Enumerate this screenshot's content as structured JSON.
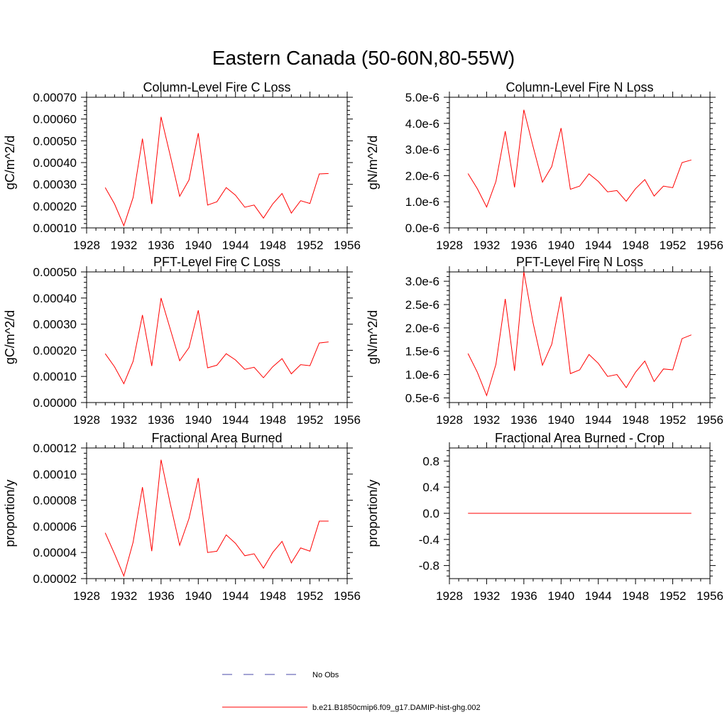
{
  "title": "Eastern Canada (50-60N,80-55W)",
  "colors": {
    "model": "#ff0000",
    "obs": "#4a4aaa",
    "axis": "#000000"
  },
  "legend": {
    "entries": [
      {
        "label": "No Obs",
        "style": "dashed",
        "color": "#4a4aaa"
      },
      {
        "label": "b.e21.B1850cmip6.f09_g17.DAMIP-hist-ghg.002",
        "style": "solid",
        "color": "#ff0000"
      }
    ]
  },
  "chart_data": [
    {
      "type": "line",
      "title": "Column-Level Fire C Loss",
      "ylabel": "gC/m^2/d",
      "xlim": [
        1928,
        1956
      ],
      "ylim": [
        0.0001,
        0.0007
      ],
      "xticks": [
        "1928",
        "1932",
        "1936",
        "1940",
        "1944",
        "1948",
        "1952",
        "1956"
      ],
      "yticks": [
        "0.00010",
        "0.00020",
        "0.00030",
        "0.00040",
        "0.00050",
        "0.00060",
        "0.00070"
      ],
      "x": [
        1930,
        1931,
        1932,
        1933,
        1934,
        1935,
        1936,
        1937,
        1938,
        1939,
        1940,
        1941,
        1942,
        1943,
        1944,
        1945,
        1946,
        1947,
        1948,
        1949,
        1950,
        1951,
        1952,
        1953,
        1954
      ],
      "series": [
        {
          "values": [
            0.000285,
            0.00021,
            0.00011,
            0.00024,
            0.00051,
            0.00021,
            0.00061,
            0.00043,
            0.000245,
            0.00032,
            0.000535,
            0.000205,
            0.00022,
            0.000285,
            0.00025,
            0.000195,
            0.000205,
            0.000145,
            0.00021,
            0.000258,
            0.000168,
            0.000225,
            0.000212,
            0.000348,
            0.00035
          ]
        }
      ]
    },
    {
      "type": "line",
      "title": "Column-Level Fire N Loss",
      "ylabel": "gN/m^2/d",
      "xlim": [
        1928,
        1956
      ],
      "ylim": [
        0.0,
        5e-06
      ],
      "xticks": [
        "1928",
        "1932",
        "1936",
        "1940",
        "1944",
        "1948",
        "1952",
        "1956"
      ],
      "yticks": [
        "0.0e-6",
        "1.0e-6",
        "2.0e-6",
        "3.0e-6",
        "4.0e-6",
        "5.0e-6"
      ],
      "x": [
        1930,
        1931,
        1932,
        1933,
        1934,
        1935,
        1936,
        1937,
        1938,
        1939,
        1940,
        1941,
        1942,
        1943,
        1944,
        1945,
        1946,
        1947,
        1948,
        1949,
        1950,
        1951,
        1952,
        1953,
        1954
      ],
      "series": [
        {
          "values": [
            2.08e-06,
            1.5e-06,
            8e-07,
            1.78e-06,
            3.7e-06,
            1.55e-06,
            4.52e-06,
            3.1e-06,
            1.75e-06,
            2.35e-06,
            3.82e-06,
            1.48e-06,
            1.6e-06,
            2.07e-06,
            1.78e-06,
            1.38e-06,
            1.43e-06,
            1.02e-06,
            1.5e-06,
            1.85e-06,
            1.22e-06,
            1.6e-06,
            1.54e-06,
            2.5e-06,
            2.6e-06
          ]
        }
      ]
    },
    {
      "type": "line",
      "title": "PFT-Level Fire C Loss",
      "ylabel": "gC/m^2/d",
      "xlim": [
        1928,
        1956
      ],
      "ylim": [
        0.0,
        0.0005
      ],
      "xticks": [
        "1928",
        "1932",
        "1936",
        "1940",
        "1944",
        "1948",
        "1952",
        "1956"
      ],
      "yticks": [
        "0.00000",
        "0.00010",
        "0.00020",
        "0.00030",
        "0.00040",
        "0.00050"
      ],
      "x": [
        1930,
        1931,
        1932,
        1933,
        1934,
        1935,
        1936,
        1937,
        1938,
        1939,
        1940,
        1941,
        1942,
        1943,
        1944,
        1945,
        1946,
        1947,
        1948,
        1949,
        1950,
        1951,
        1952,
        1953,
        1954
      ],
      "series": [
        {
          "values": [
            0.000187,
            0.000137,
            7.2e-05,
            0.000158,
            0.000335,
            0.00014,
            0.0004,
            0.00028,
            0.00016,
            0.00021,
            0.000353,
            0.000133,
            0.000143,
            0.000187,
            0.000163,
            0.000127,
            0.000135,
            9.5e-05,
            0.000137,
            0.000168,
            0.00011,
            0.000145,
            0.000141,
            0.000228,
            0.000232
          ]
        }
      ]
    },
    {
      "type": "line",
      "title": "PFT-Level Fire N Loss",
      "ylabel": "gN/m^2/d",
      "xlim": [
        1928,
        1956
      ],
      "ylim": [
        4e-07,
        3.2e-06
      ],
      "xticks": [
        "1928",
        "1932",
        "1936",
        "1940",
        "1944",
        "1948",
        "1952",
        "1956"
      ],
      "yticks": [
        "0.5e-6",
        "1.0e-6",
        "1.5e-6",
        "2.0e-6",
        "2.5e-6",
        "3.0e-6"
      ],
      "x": [
        1930,
        1931,
        1932,
        1933,
        1934,
        1935,
        1936,
        1937,
        1938,
        1939,
        1940,
        1941,
        1942,
        1943,
        1944,
        1945,
        1946,
        1947,
        1948,
        1949,
        1950,
        1951,
        1952,
        1953,
        1954
      ],
      "series": [
        {
          "values": [
            1.45e-06,
            1.05e-06,
            5.5e-07,
            1.22e-06,
            2.62e-06,
            1.08e-06,
            3.2e-06,
            2.1e-06,
            1.2e-06,
            1.65e-06,
            2.67e-06,
            1.02e-06,
            1.1e-06,
            1.43e-06,
            1.24e-06,
            9.6e-07,
            1e-06,
            7.2e-07,
            1.05e-06,
            1.29e-06,
            8.5e-07,
            1.12e-06,
            1.1e-06,
            1.77e-06,
            1.85e-06
          ]
        }
      ]
    },
    {
      "type": "line",
      "title": "Fractional Area Burned",
      "ylabel": "proportion/y",
      "xlim": [
        1928,
        1956
      ],
      "ylim": [
        2e-05,
        0.00012
      ],
      "xticks": [
        "1928",
        "1932",
        "1936",
        "1940",
        "1944",
        "1948",
        "1952",
        "1956"
      ],
      "yticks": [
        "0.00002",
        "0.00004",
        "0.00006",
        "0.00008",
        "0.00010",
        "0.00012"
      ],
      "x": [
        1930,
        1931,
        1932,
        1933,
        1934,
        1935,
        1936,
        1937,
        1938,
        1939,
        1940,
        1941,
        1942,
        1943,
        1944,
        1945,
        1946,
        1947,
        1948,
        1949,
        1950,
        1951,
        1952,
        1953,
        1954
      ],
      "series": [
        {
          "values": [
            5.5e-05,
            3.9e-05,
            2.2e-05,
            4.8e-05,
            9e-05,
            4.1e-05,
            0.000111,
            7.7e-05,
            4.55e-05,
            6.6e-05,
            9.7e-05,
            4e-05,
            4.1e-05,
            5.35e-05,
            4.7e-05,
            3.75e-05,
            3.9e-05,
            2.8e-05,
            4e-05,
            4.85e-05,
            3.2e-05,
            4.35e-05,
            4.1e-05,
            6.4e-05,
            6.4e-05
          ]
        }
      ]
    },
    {
      "type": "line",
      "title": "Fractional Area Burned - Crop",
      "ylabel": "proportion/y",
      "xlim": [
        1928,
        1956
      ],
      "ylim": [
        -1.0,
        1.0
      ],
      "xticks": [
        "1928",
        "1932",
        "1936",
        "1940",
        "1944",
        "1948",
        "1952",
        "1956"
      ],
      "yticks": [
        "-0.8",
        "-0.4",
        "0.0",
        "0.4",
        "0.8"
      ],
      "x": [
        1930,
        1931,
        1932,
        1933,
        1934,
        1935,
        1936,
        1937,
        1938,
        1939,
        1940,
        1941,
        1942,
        1943,
        1944,
        1945,
        1946,
        1947,
        1948,
        1949,
        1950,
        1951,
        1952,
        1953,
        1954
      ],
      "series": [
        {
          "values": [
            0,
            0,
            0,
            0,
            0,
            0,
            0,
            0,
            0,
            0,
            0,
            0,
            0,
            0,
            0,
            0,
            0,
            0,
            0,
            0,
            0,
            0,
            0,
            0,
            0
          ]
        }
      ]
    }
  ]
}
